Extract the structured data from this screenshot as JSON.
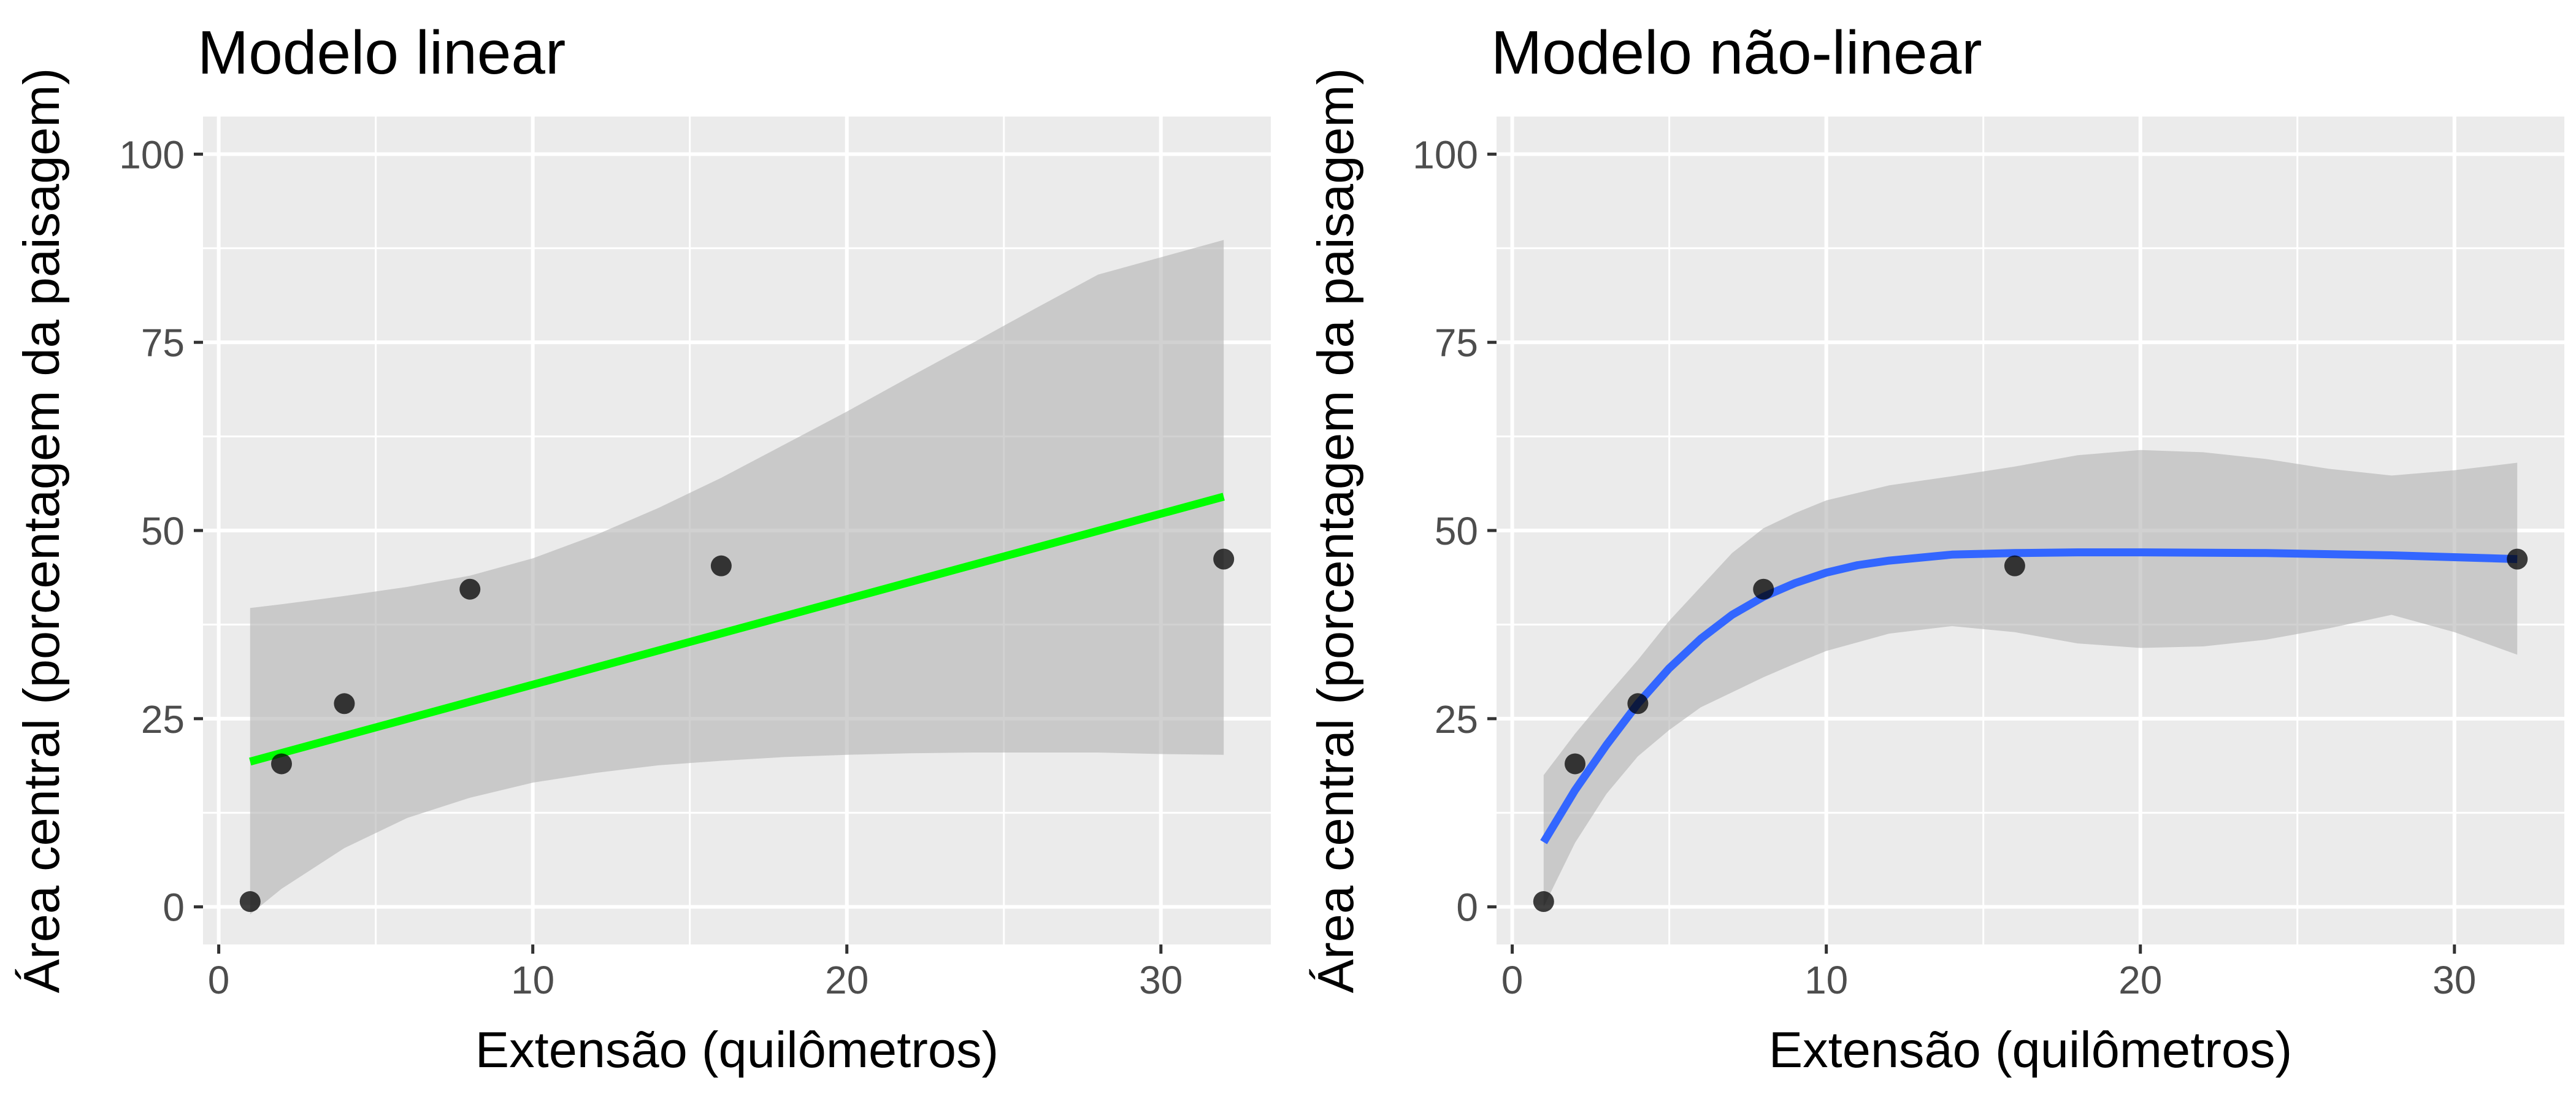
{
  "chart_data": [
    {
      "type": "scatter",
      "title": "Modelo linear",
      "xlabel": "Extensão (quilômetros)",
      "ylabel": "Área central (porcentagem da paisagem)",
      "xlim": [
        -0.5,
        33.5
      ],
      "ylim": [
        -5,
        105
      ],
      "x_ticks": [
        0,
        10,
        20,
        30
      ],
      "y_ticks": [
        0,
        25,
        50,
        75,
        100
      ],
      "grid": true,
      "points": {
        "x": [
          1,
          2,
          4,
          8,
          16,
          32
        ],
        "y": [
          0.7,
          19,
          27,
          42.2,
          45.3,
          46.2
        ]
      },
      "fit": {
        "name": "",
        "method": "linear",
        "color": "#00ff00",
        "x": [
          1,
          32
        ],
        "y": [
          19.3,
          54.5
        ]
      },
      "band": {
        "color": "#b2b2b2",
        "x": [
          1,
          2,
          4,
          6,
          8,
          10,
          12,
          14,
          16,
          18,
          20,
          22,
          24,
          26,
          28,
          30,
          32
        ],
        "lower": [
          -1,
          2.4,
          7.8,
          11.8,
          14.5,
          16.5,
          17.8,
          18.8,
          19.4,
          19.9,
          20.2,
          20.4,
          20.5,
          20.5,
          20.5,
          20.3,
          20.2
        ],
        "upper": [
          39.7,
          40.2,
          41.3,
          42.5,
          44,
          46.3,
          49.4,
          53,
          57,
          61.4,
          65.8,
          70.4,
          74.9,
          79.5,
          84,
          86.3,
          88.6
        ]
      }
    },
    {
      "type": "scatter",
      "title": "Modelo não-linear",
      "xlabel": "Extensão (quilômetros)",
      "ylabel": "Área central (porcentagem da paisagem)",
      "xlim": [
        -0.5,
        33.5
      ],
      "ylim": [
        -5,
        105
      ],
      "x_ticks": [
        0,
        10,
        20,
        30
      ],
      "y_ticks": [
        0,
        25,
        50,
        75,
        100
      ],
      "grid": true,
      "points": {
        "x": [
          1,
          2,
          4,
          8,
          16,
          32
        ],
        "y": [
          0.7,
          19,
          27,
          42.2,
          45.3,
          46.2
        ]
      },
      "fit": {
        "name": "",
        "method": "nonlinear",
        "color": "#3366ff",
        "x": [
          1,
          2,
          3,
          4,
          5,
          6,
          7,
          8,
          9,
          10,
          11,
          12,
          14,
          16,
          18,
          20,
          24,
          28,
          32
        ],
        "y": [
          8.6,
          15.5,
          21.5,
          27,
          31.7,
          35.6,
          38.8,
          41.2,
          43,
          44.4,
          45.4,
          46,
          46.8,
          47,
          47.1,
          47.1,
          47,
          46.7,
          46.2
        ]
      },
      "band": {
        "color": "#b2b2b2",
        "x": [
          1,
          2,
          3,
          4,
          5,
          6,
          7,
          8,
          9,
          10,
          12,
          14,
          16,
          18,
          20,
          22,
          24,
          26,
          28,
          30,
          32
        ],
        "lower": [
          0,
          8.5,
          15,
          20,
          23.5,
          26.5,
          28.5,
          30.5,
          32.3,
          34,
          36.3,
          37.3,
          36.5,
          35,
          34.4,
          34.6,
          35.5,
          37,
          38.8,
          36.5,
          33.5
        ],
        "upper": [
          17.5,
          23,
          28,
          32.8,
          38,
          42.5,
          47,
          50.3,
          52.3,
          54,
          56,
          57.2,
          58.5,
          60,
          60.7,
          60.4,
          59.5,
          58.2,
          57.3,
          58,
          59
        ]
      }
    }
  ]
}
